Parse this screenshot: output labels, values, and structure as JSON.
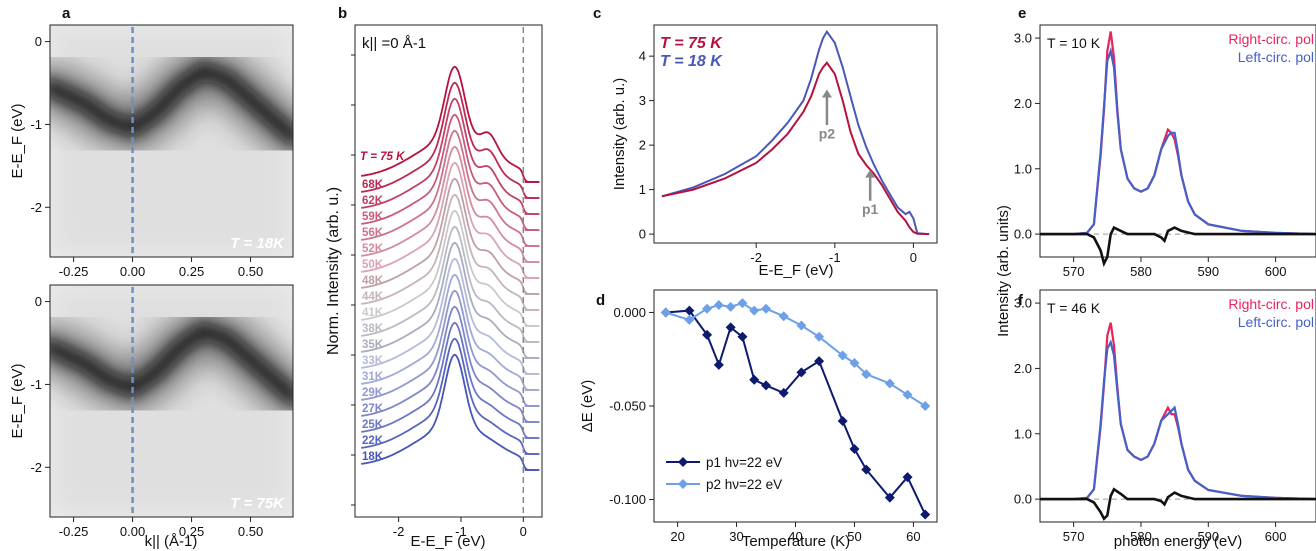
{
  "panel_letters": {
    "a": "a",
    "b": "b",
    "c": "c",
    "d": "d",
    "e": "e",
    "f": "f"
  },
  "colors": {
    "red": "#b5123e",
    "blue": "#4857b8",
    "navy": "#0d1a6e",
    "light_blue": "#6ea0e8",
    "pink": "#e8245a",
    "pol_blue": "#4560c8",
    "gray": "#888888"
  },
  "chart_data": [
    {
      "id": "a_top",
      "type": "heatmap",
      "ylabel": "E-E_F (eV)",
      "xlim": [
        -0.35,
        0.68
      ],
      "ylim": [
        -2.6,
        0.2
      ],
      "xticks": [
        "-0.25",
        "0.00",
        "0.25",
        "0.50"
      ],
      "xtick_values": [
        -0.25,
        0.0,
        0.25,
        0.5
      ],
      "yticks": [
        "0",
        "-1",
        "-2"
      ],
      "ytick_values": [
        0,
        -1,
        -2
      ],
      "annotation": "T = 18K",
      "cut_k": 0.0,
      "band": [
        [
          -0.35,
          -0.55
        ],
        [
          -0.2,
          -0.75
        ],
        [
          -0.1,
          -0.95
        ],
        [
          0.0,
          -1.05
        ],
        [
          0.1,
          -0.85
        ],
        [
          0.2,
          -0.55
        ],
        [
          0.3,
          -0.35
        ],
        [
          0.4,
          -0.45
        ],
        [
          0.5,
          -0.7
        ],
        [
          0.6,
          -0.95
        ],
        [
          0.68,
          -1.15
        ]
      ]
    },
    {
      "id": "a_bottom",
      "type": "heatmap",
      "xlabel": "k|| (Å-1)",
      "ylabel": "E-E_F (eV)",
      "xlim": [
        -0.35,
        0.68
      ],
      "ylim": [
        -2.6,
        0.2
      ],
      "xticks": [
        "-0.25",
        "0.00",
        "0.25",
        "0.50"
      ],
      "xtick_values": [
        -0.25,
        0.0,
        0.25,
        0.5
      ],
      "yticks": [
        "0",
        "-1",
        "-2"
      ],
      "ytick_values": [
        0,
        -1,
        -2
      ],
      "annotation": "T = 75K",
      "cut_k": 0.0,
      "band": [
        [
          -0.35,
          -0.55
        ],
        [
          -0.2,
          -0.75
        ],
        [
          -0.1,
          -0.95
        ],
        [
          0.0,
          -1.05
        ],
        [
          0.1,
          -0.85
        ],
        [
          0.2,
          -0.55
        ],
        [
          0.3,
          -0.35
        ],
        [
          0.4,
          -0.45
        ],
        [
          0.5,
          -0.7
        ],
        [
          0.6,
          -0.95
        ],
        [
          0.68,
          -1.15
        ]
      ]
    },
    {
      "id": "b",
      "type": "line",
      "xlabel": "E-E_F (eV)",
      "ylabel": "Norm. Intensity (arb. u.)",
      "xlim": [
        -2.7,
        0.3
      ],
      "xticks": [
        "-2",
        "-1",
        "0"
      ],
      "xtick_values": [
        -2,
        -1,
        0
      ],
      "annotation": "k|| =0 Å-1",
      "fermi_level": 0,
      "series_labels": [
        "T = 75 K",
        "68K",
        "62K",
        "59K",
        "56K",
        "52K",
        "50K",
        "48K",
        "44K",
        "41K",
        "38K",
        "35K",
        "33K",
        "31K",
        "29K",
        "27K",
        "25K",
        "22K",
        "18K"
      ],
      "offset_step": 1,
      "peak_energy": -1.1
    },
    {
      "id": "c",
      "type": "line",
      "xlabel": "E-E_F (eV)",
      "ylabel": "Intensity (arb. u.)",
      "xlim": [
        -3.3,
        0.3
      ],
      "ylim": [
        -0.2,
        4.7
      ],
      "xticks": [
        "-2",
        "-1",
        "0"
      ],
      "xtick_values": [
        -2,
        -1,
        0
      ],
      "yticks": [
        "0",
        "1",
        "2",
        "3",
        "4"
      ],
      "ytick_values": [
        0,
        1,
        2,
        3,
        4
      ],
      "legend": [
        "T = 75 K",
        "T = 18 K"
      ],
      "annotations": [
        {
          "text": "p2",
          "x": -1.1
        },
        {
          "text": "p1",
          "x": -0.55
        }
      ],
      "series": [
        {
          "name": "T = 75 K",
          "x": [
            -3.2,
            -2.8,
            -2.4,
            -2.0,
            -1.8,
            -1.6,
            -1.4,
            -1.3,
            -1.2,
            -1.15,
            -1.1,
            -1.0,
            -0.9,
            -0.8,
            -0.7,
            -0.6,
            -0.5,
            -0.4,
            -0.3,
            -0.2,
            -0.1,
            -0.05,
            0.0,
            0.05,
            0.2
          ],
          "y": [
            0.85,
            1.0,
            1.25,
            1.6,
            1.9,
            2.25,
            2.75,
            3.1,
            3.6,
            3.75,
            3.85,
            3.6,
            3.0,
            2.3,
            1.8,
            1.55,
            1.35,
            1.1,
            0.8,
            0.5,
            0.3,
            0.15,
            0.05,
            0.01,
            0.0
          ]
        },
        {
          "name": "T = 18 K",
          "x": [
            -3.2,
            -2.8,
            -2.4,
            -2.0,
            -1.8,
            -1.6,
            -1.4,
            -1.3,
            -1.2,
            -1.15,
            -1.1,
            -1.0,
            -0.9,
            -0.8,
            -0.7,
            -0.6,
            -0.5,
            -0.4,
            -0.3,
            -0.2,
            -0.1,
            -0.05,
            0.0,
            0.05,
            0.2
          ],
          "y": [
            0.85,
            1.05,
            1.35,
            1.75,
            2.1,
            2.5,
            3.0,
            3.5,
            4.15,
            4.4,
            4.55,
            4.3,
            3.75,
            3.1,
            2.45,
            1.95,
            1.55,
            1.2,
            0.9,
            0.6,
            0.45,
            0.5,
            0.35,
            0.02,
            0.0
          ]
        }
      ]
    },
    {
      "id": "d",
      "type": "line",
      "xlabel": "Temperature (K)",
      "ylabel": "ΔE (eV)",
      "xlim": [
        16,
        64
      ],
      "ylim": [
        -0.112,
        0.012
      ],
      "xticks": [
        "20",
        "30",
        "40",
        "50",
        "60"
      ],
      "xtick_values": [
        20,
        30,
        40,
        50,
        60
      ],
      "yticks": [
        "0.000",
        "-0.050",
        "-0.100"
      ],
      "ytick_values": [
        0.0,
        -0.05,
        -0.1
      ],
      "series": [
        {
          "name": "p1 hν=22 eV",
          "x": [
            18,
            22,
            25,
            27,
            29,
            31,
            33,
            35,
            38,
            41,
            44,
            48,
            50,
            52,
            56,
            59,
            62
          ],
          "y": [
            0.0,
            0.001,
            -0.012,
            -0.028,
            -0.008,
            -0.013,
            -0.036,
            -0.039,
            -0.043,
            -0.032,
            -0.026,
            -0.058,
            -0.073,
            -0.084,
            -0.099,
            -0.088,
            -0.108
          ]
        },
        {
          "name": "p2 hν=22 eV",
          "x": [
            18,
            22,
            25,
            27,
            29,
            31,
            33,
            35,
            38,
            41,
            44,
            48,
            50,
            52,
            56,
            59,
            62
          ],
          "y": [
            0.0,
            -0.004,
            0.002,
            0.004,
            0.003,
            0.005,
            0.001,
            0.002,
            -0.002,
            -0.007,
            -0.013,
            -0.023,
            -0.027,
            -0.033,
            -0.038,
            -0.044,
            -0.05
          ]
        }
      ]
    },
    {
      "id": "e",
      "type": "line",
      "xlim": [
        565,
        606
      ],
      "ylim": [
        -0.35,
        3.2
      ],
      "xticks": [
        "570",
        "580",
        "590",
        "600"
      ],
      "xtick_values": [
        570,
        580,
        590,
        600
      ],
      "yticks": [
        "0.0",
        "1.0",
        "2.0",
        "3.0"
      ],
      "ytick_values": [
        0.0,
        1.0,
        2.0,
        3.0
      ],
      "annotation": "T = 10 K",
      "legend": [
        "Right-circ. pol",
        "Left-circ. pol"
      ],
      "series": [
        {
          "name": "Right-circ. pol",
          "x": [
            565,
            570,
            572,
            573,
            574,
            574.5,
            575,
            575.5,
            576,
            576.5,
            577,
            578,
            579,
            580,
            581,
            582,
            583,
            584,
            584.5,
            585,
            585.5,
            586,
            587,
            588,
            590,
            595,
            600,
            606
          ],
          "y": [
            0.0,
            0.0,
            0.02,
            0.15,
            1.2,
            1.9,
            2.8,
            3.1,
            2.7,
            1.9,
            1.3,
            0.85,
            0.7,
            0.65,
            0.7,
            0.9,
            1.3,
            1.6,
            1.55,
            1.45,
            1.2,
            0.9,
            0.5,
            0.3,
            0.15,
            0.05,
            0.02,
            0.0
          ]
        },
        {
          "name": "Left-circ. pol",
          "x": [
            565,
            570,
            572,
            573,
            574,
            574.5,
            575,
            575.5,
            576,
            576.5,
            577,
            578,
            579,
            580,
            581,
            582,
            583,
            584,
            584.5,
            585,
            585.5,
            586,
            587,
            588,
            590,
            595,
            600,
            606
          ],
          "y": [
            0.0,
            0.0,
            0.02,
            0.15,
            1.25,
            1.95,
            2.65,
            2.8,
            2.55,
            1.85,
            1.3,
            0.85,
            0.7,
            0.65,
            0.7,
            0.9,
            1.3,
            1.5,
            1.55,
            1.55,
            1.25,
            0.9,
            0.5,
            0.3,
            0.15,
            0.05,
            0.02,
            0.0
          ]
        },
        {
          "name": "difference",
          "x": [
            565,
            572,
            573,
            574,
            574.5,
            575,
            575.5,
            576,
            577,
            578,
            580,
            582,
            583,
            583.5,
            584,
            585,
            586,
            588,
            595,
            606
          ],
          "y": [
            0.0,
            0.0,
            -0.05,
            -0.25,
            -0.45,
            -0.35,
            0.0,
            0.1,
            0.05,
            0.0,
            0.0,
            0.0,
            -0.05,
            -0.1,
            0.05,
            0.1,
            0.05,
            0.0,
            0.0,
            0.0
          ]
        }
      ]
    },
    {
      "id": "f",
      "type": "line",
      "xlabel": "photon energy (eV)",
      "xlim": [
        565,
        606
      ],
      "ylim": [
        -0.35,
        3.2
      ],
      "xticks": [
        "570",
        "580",
        "590",
        "600"
      ],
      "xtick_values": [
        570,
        580,
        590,
        600
      ],
      "yticks": [
        "0.0",
        "1.0",
        "2.0",
        "3.0"
      ],
      "ytick_values": [
        0.0,
        1.0,
        2.0,
        3.0
      ],
      "annotation": "T = 46 K",
      "legend": [
        "Right-circ. pol",
        "Left-circ. pol"
      ],
      "series": [
        {
          "name": "Right-circ. pol",
          "x": [
            565,
            570,
            572,
            573,
            574,
            574.5,
            575,
            575.5,
            576,
            576.5,
            577,
            578,
            579,
            580,
            581,
            582,
            583,
            584,
            584.5,
            585,
            585.5,
            586,
            587,
            588,
            590,
            595,
            600,
            606
          ],
          "y": [
            0.0,
            0.0,
            0.02,
            0.15,
            1.1,
            1.75,
            2.5,
            2.7,
            2.35,
            1.7,
            1.15,
            0.75,
            0.65,
            0.6,
            0.65,
            0.85,
            1.2,
            1.4,
            1.3,
            1.3,
            1.1,
            0.85,
            0.45,
            0.28,
            0.14,
            0.05,
            0.02,
            0.0
          ]
        },
        {
          "name": "Left-circ. pol",
          "x": [
            565,
            570,
            572,
            573,
            574,
            574.5,
            575,
            575.5,
            576,
            576.5,
            577,
            578,
            579,
            580,
            581,
            582,
            583,
            584,
            584.5,
            585,
            585.5,
            586,
            587,
            588,
            590,
            595,
            600,
            606
          ],
          "y": [
            0.0,
            0.0,
            0.02,
            0.15,
            1.15,
            1.8,
            2.3,
            2.4,
            2.2,
            1.65,
            1.15,
            0.75,
            0.65,
            0.6,
            0.65,
            0.85,
            1.2,
            1.3,
            1.35,
            1.4,
            1.15,
            0.85,
            0.45,
            0.28,
            0.14,
            0.05,
            0.02,
            0.0
          ]
        },
        {
          "name": "difference",
          "x": [
            565,
            572,
            573,
            574,
            574.5,
            575,
            575.5,
            576,
            577,
            578,
            580,
            582,
            583,
            583.5,
            584,
            585,
            586,
            588,
            595,
            606
          ],
          "y": [
            0.0,
            0.0,
            -0.05,
            -0.2,
            -0.3,
            -0.25,
            0.05,
            0.15,
            0.08,
            0.0,
            0.0,
            0.0,
            -0.03,
            -0.08,
            0.03,
            0.1,
            0.05,
            0.0,
            0.0,
            0.0
          ]
        }
      ]
    }
  ],
  "shared_ylabel_ef": "Intensity (arb. units)"
}
